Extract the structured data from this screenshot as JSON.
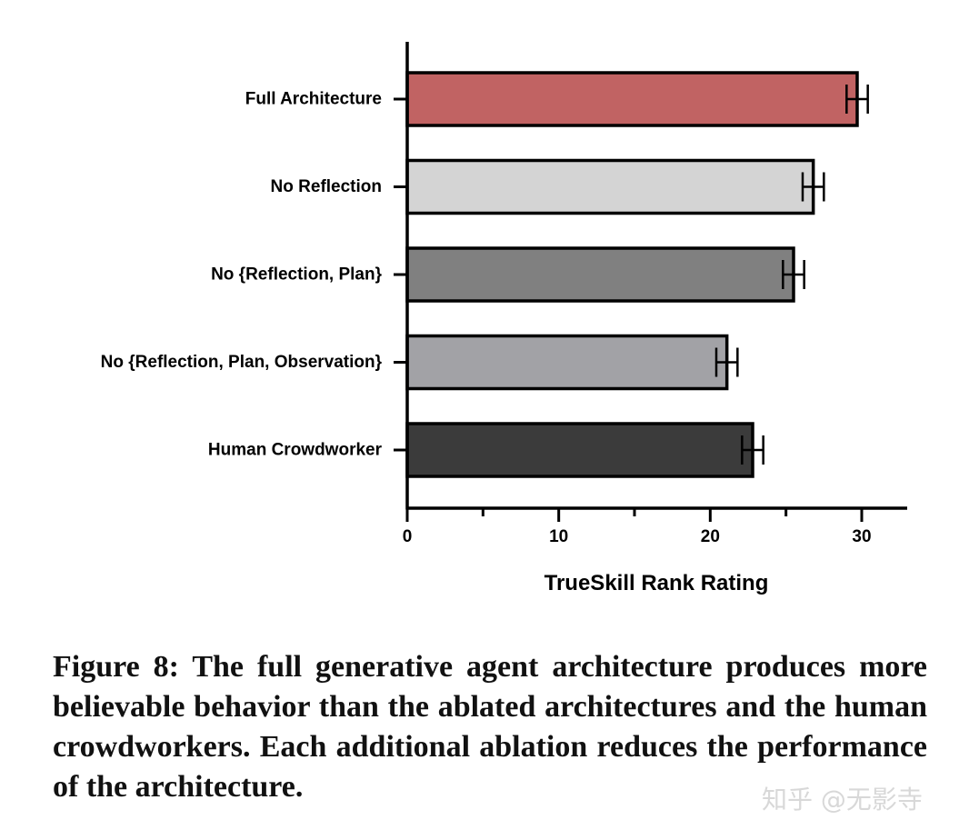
{
  "chart_data": {
    "type": "bar",
    "orientation": "horizontal",
    "title": "",
    "xlabel": "TrueSkill Rank Rating",
    "ylabel": "",
    "xlim": [
      0,
      33
    ],
    "xticks": [
      0,
      10,
      20,
      30
    ],
    "categories": [
      "Full Architecture",
      "No Reflection",
      "No {Reflection, Plan}",
      "No {Reflection, Plan, Observation}",
      "Human Crowdworker"
    ],
    "values": [
      29.7,
      26.8,
      25.5,
      21.1,
      22.8
    ],
    "error": [
      0.7,
      0.7,
      0.7,
      0.7,
      0.7
    ],
    "colors": [
      "#c16363",
      "#d4d4d4",
      "#808080",
      "#a2a2a6",
      "#3b3b3b"
    ],
    "grid": false,
    "legend": "none"
  },
  "caption": "Figure 8: The full generative agent architecture produces more believable behavior than the ablated architectures and the human crowdworkers. Each additional ablation reduces the performance of the architecture.",
  "watermark": "知乎 @无影寺"
}
